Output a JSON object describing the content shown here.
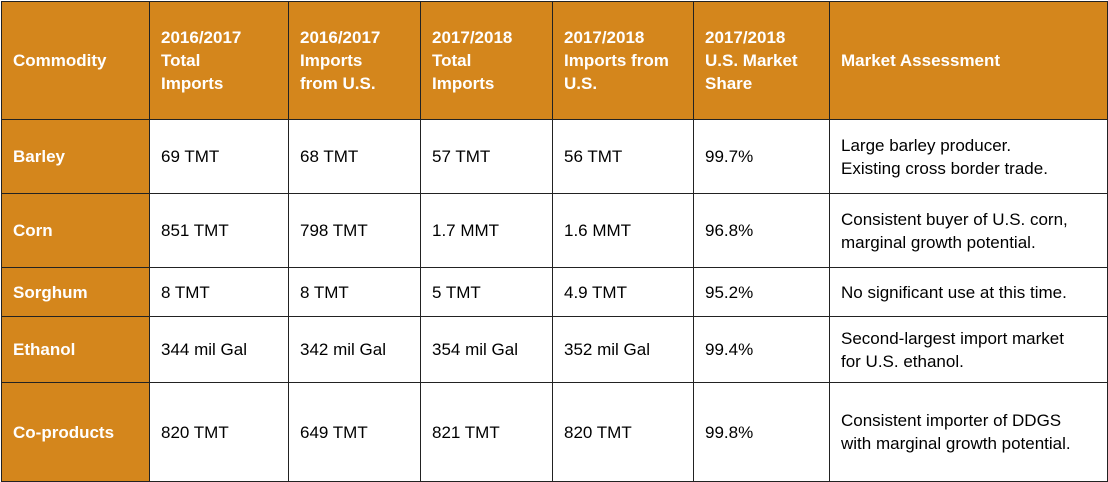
{
  "table": {
    "headers": [
      [
        "Commodity"
      ],
      [
        "2016/2017",
        "Total",
        "Imports"
      ],
      [
        "2016/2017",
        "Imports",
        "from U.S."
      ],
      [
        "2017/2018",
        "Total",
        "Imports"
      ],
      [
        "2017/2018",
        "Imports from",
        "U.S."
      ],
      [
        "2017/2018",
        "U.S. Market",
        "Share"
      ],
      [
        "Market Assessment"
      ]
    ],
    "rows": [
      {
        "commodity": "Barley",
        "total_1617": "69 TMT",
        "us_1617": "68 TMT",
        "total_1718": "57 TMT",
        "us_1718": "56 TMT",
        "share_1718": "99.7%",
        "assessment": [
          "Large barley producer.",
          "Existing cross border trade."
        ]
      },
      {
        "commodity": "Corn",
        "total_1617": "851 TMT",
        "us_1617": "798 TMT",
        "total_1718": "1.7 MMT",
        "us_1718": "1.6 MMT",
        "share_1718": "96.8%",
        "assessment": [
          "Consistent buyer of U.S. corn,",
          "marginal growth potential."
        ]
      },
      {
        "commodity": "Sorghum",
        "total_1617": "8 TMT",
        "us_1617": "8 TMT",
        "total_1718": "5 TMT",
        "us_1718": "4.9 TMT",
        "share_1718": "95.2%",
        "assessment": [
          "No significant use at this time."
        ]
      },
      {
        "commodity": "Ethanol",
        "total_1617": "344 mil Gal",
        "us_1617": "342 mil Gal",
        "total_1718": "354 mil Gal",
        "us_1718": "352 mil Gal",
        "share_1718": "99.4%",
        "assessment": [
          "Second-largest import market",
          "for U.S. ethanol."
        ]
      },
      {
        "commodity": "Co-products",
        "total_1617": "820 TMT",
        "us_1617": "649 TMT",
        "total_1718": "821 TMT",
        "us_1718": "820 TMT",
        "share_1718": "99.8%",
        "assessment": [
          "Consistent importer of DDGS",
          "with marginal growth potential."
        ]
      }
    ]
  },
  "colors": {
    "header_fill": "#d4861c",
    "header_text": "#ffffff",
    "border": "#222222",
    "body_fill": "#ffffff"
  }
}
